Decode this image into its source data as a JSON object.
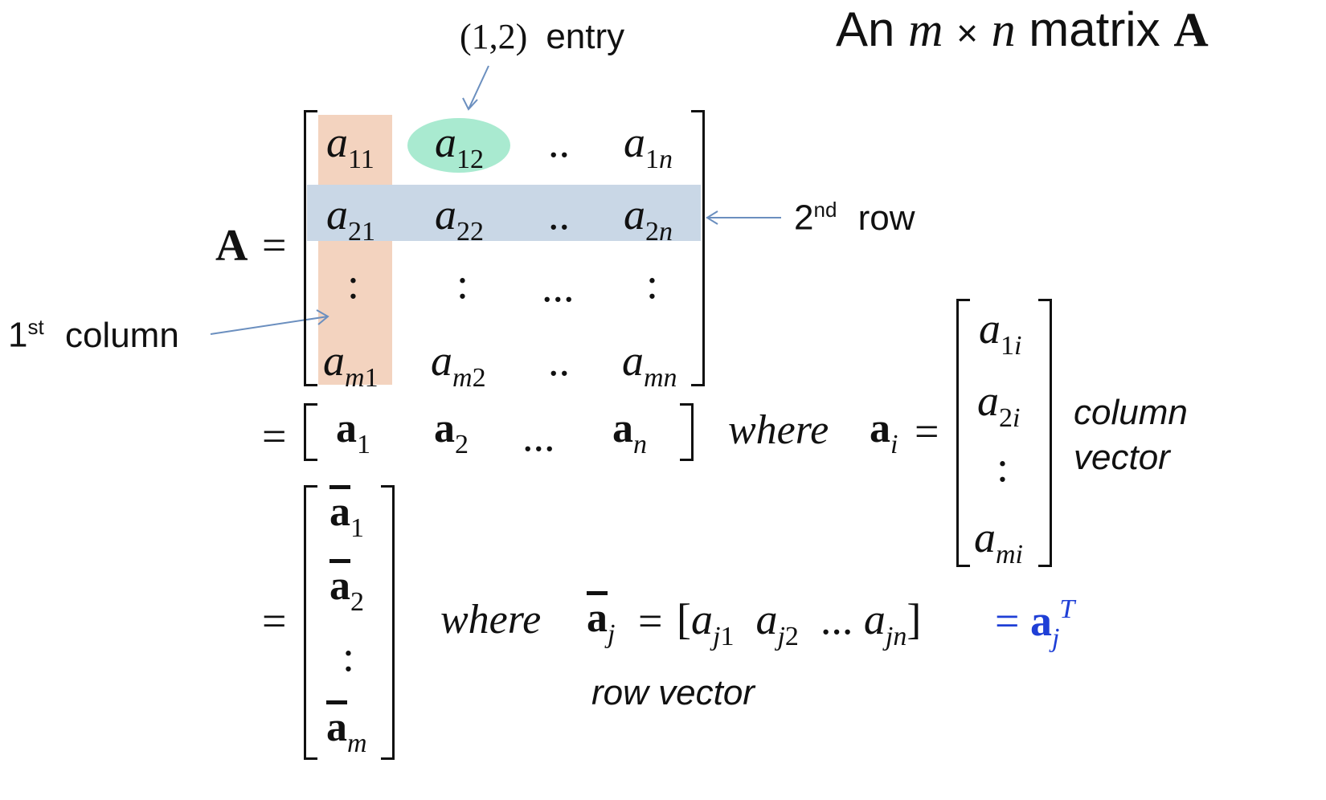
{
  "title": {
    "prefix": "An",
    "m": "m",
    "times": "×",
    "n": "n",
    "word": "matrix",
    "A": "A"
  },
  "annotations": {
    "entry_label_pos": "(1,2)",
    "entry_label_word": "entry",
    "row_label_num": "2",
    "row_label_sup": "nd",
    "row_label_word": "row",
    "col_label_num": "1",
    "col_label_sup": "st",
    "col_label_word": "column",
    "column_vector": "column",
    "column_vector2": "vector",
    "row_vector": "row vector"
  },
  "equation": {
    "lhs": "A",
    "eq": "=",
    "where": "where"
  },
  "matrix": {
    "rows": [
      [
        [
          "a",
          "11"
        ],
        [
          "a",
          "12"
        ],
        [
          ".."
        ],
        [
          "a",
          "1n"
        ]
      ],
      [
        [
          "a",
          "21"
        ],
        [
          "a",
          "22"
        ],
        [
          ".."
        ],
        [
          "a",
          "2n"
        ]
      ],
      [
        [
          ":"
        ],
        [
          ":"
        ],
        [
          "..."
        ],
        [
          ":"
        ]
      ],
      [
        [
          "a",
          "m1"
        ],
        [
          "a",
          "m2"
        ],
        [
          ".."
        ],
        [
          "a",
          "mn"
        ]
      ]
    ]
  },
  "colors": {
    "column_highlight": "#f3d3bf",
    "row_highlight": "#c9d7e6",
    "entry_highlight": "#a9ead0",
    "arrow": "#6b8fbf",
    "transpose_blue": "#1f3fd6"
  }
}
